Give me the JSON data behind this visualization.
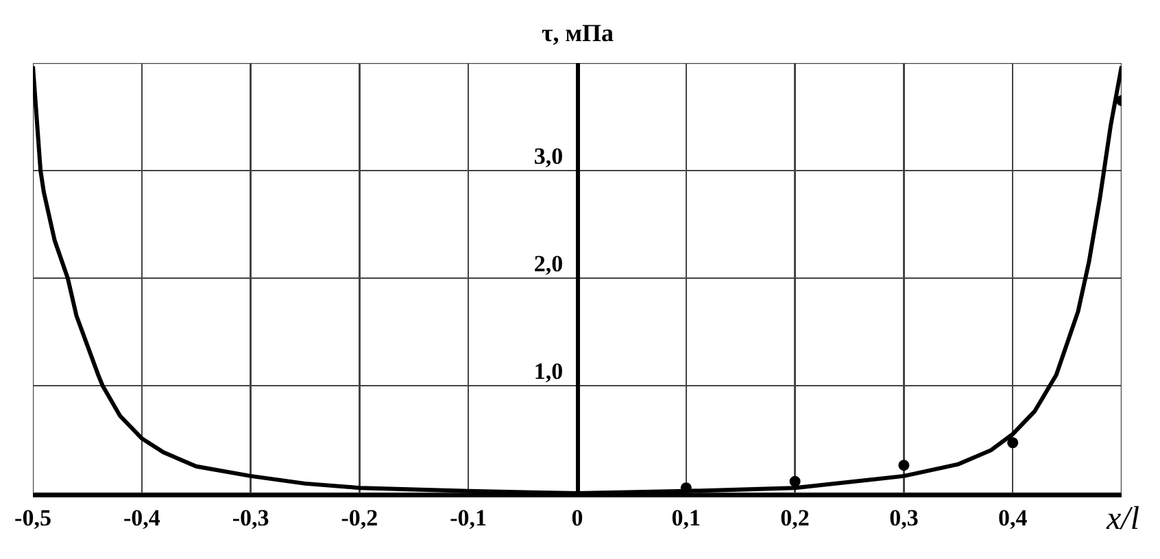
{
  "chart_data": {
    "type": "line",
    "ylabel": "τ, мПа",
    "xlabel": "x/l",
    "xlim": [
      -0.5,
      0.5
    ],
    "ylim": [
      0,
      4.0
    ],
    "xticks": [
      {
        "value": -0.5,
        "label": "-0,5"
      },
      {
        "value": -0.4,
        "label": "-0,4"
      },
      {
        "value": -0.3,
        "label": "-0,3"
      },
      {
        "value": -0.2,
        "label": "-0,2"
      },
      {
        "value": -0.1,
        "label": "-0,1"
      },
      0,
      {
        "value": 0.1,
        "label": "0,1"
      },
      {
        "value": 0.2,
        "label": "0,2"
      },
      {
        "value": 0.3,
        "label": "0,3"
      },
      {
        "value": 0.4,
        "label": "0,4"
      },
      {
        "value": 0.5,
        "label": null
      }
    ],
    "yticks": [
      {
        "value": 0,
        "label": null
      },
      {
        "value": 1,
        "label": "1,0"
      },
      {
        "value": 2,
        "label": "2,0"
      },
      {
        "value": 3,
        "label": "3,0"
      },
      {
        "value": 4,
        "label": null
      }
    ],
    "grid": true,
    "series": [
      {
        "type": "line",
        "color": "#000000",
        "x": [
          -0.5,
          -0.493,
          -0.49,
          -0.48,
          -0.468,
          -0.46,
          -0.44,
          -0.436,
          -0.42,
          -0.4,
          -0.38,
          -0.35,
          -0.3,
          -0.25,
          -0.2,
          -0.1,
          0,
          0.1,
          0.2,
          0.3,
          0.35,
          0.38,
          0.4,
          0.42,
          0.44,
          0.46,
          0.47,
          0.48,
          0.49,
          0.5
        ],
        "values": [
          3.97,
          3.0,
          2.8,
          2.35,
          2.0,
          1.65,
          1.1,
          1.0,
          0.72,
          0.51,
          0.38,
          0.25,
          0.16,
          0.09,
          0.05,
          0.02,
          0,
          0.02,
          0.05,
          0.16,
          0.27,
          0.4,
          0.55,
          0.76,
          1.1,
          1.69,
          2.15,
          2.74,
          3.42,
          3.97
        ]
      },
      {
        "type": "scatter",
        "marker": "circle",
        "color": "#000000",
        "x": [
          0.1,
          0.2,
          0.3,
          0.4,
          0.5
        ],
        "values": [
          0.05,
          0.11,
          0.26,
          0.47,
          3.65
        ]
      }
    ]
  }
}
